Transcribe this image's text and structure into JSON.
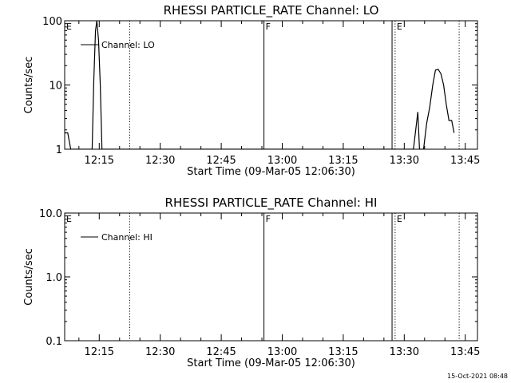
{
  "footer_timestamp": "15-Oct-2021 08:48",
  "chart_data": [
    {
      "type": "line",
      "title": "RHESSI PARTICLE_RATE Channel: LO",
      "xlabel": "Start Time (09-Mar-05 12:06:30)",
      "ylabel": "Counts/sec",
      "yscale": "log",
      "ylim": [
        1,
        100
      ],
      "y_ticks": [
        {
          "value": 1,
          "label": "1"
        },
        {
          "value": 10,
          "label": "10"
        },
        {
          "value": 100,
          "label": "100"
        }
      ],
      "xlim": [
        "12:06:30",
        "13:48:00"
      ],
      "x_ticks": [
        "12:15",
        "12:30",
        "12:45",
        "13:00",
        "13:15",
        "13:30",
        "13:45"
      ],
      "legend": {
        "position": "top-left",
        "entries": [
          "Channel: LO"
        ]
      },
      "series": [
        {
          "name": "Channel: LO",
          "color": "#000000",
          "points": [
            {
              "t": "12:06:30",
              "y": 1.8
            },
            {
              "t": "12:07:15",
              "y": 1.8
            },
            {
              "t": "12:08:00",
              "y": 1.0
            },
            {
              "t": "12:13:15",
              "y": 1.0
            },
            {
              "t": "12:13:40",
              "y": 12
            },
            {
              "t": "12:14:05",
              "y": 70
            },
            {
              "t": "12:14:25",
              "y": 100
            },
            {
              "t": "12:14:50",
              "y": 50
            },
            {
              "t": "12:15:15",
              "y": 10
            },
            {
              "t": "12:15:40",
              "y": 1.0
            },
            {
              "t": "13:32:15",
              "y": 1.0
            },
            {
              "t": "13:33:00",
              "y": 2.5
            },
            {
              "t": "13:33:20",
              "y": 3.8
            },
            {
              "t": "13:33:45",
              "y": 1.0
            },
            {
              "t": "13:34:45",
              "y": 1.0
            },
            {
              "t": "13:35:30",
              "y": 2.5
            },
            {
              "t": "13:36:15",
              "y": 4.5
            },
            {
              "t": "13:37:00",
              "y": 10
            },
            {
              "t": "13:37:40",
              "y": 17
            },
            {
              "t": "13:38:20",
              "y": 17.5
            },
            {
              "t": "13:39:00",
              "y": 15
            },
            {
              "t": "13:39:40",
              "y": 10
            },
            {
              "t": "13:40:20",
              "y": 5
            },
            {
              "t": "13:41:00",
              "y": 2.8
            },
            {
              "t": "13:41:40",
              "y": 2.8
            },
            {
              "t": "13:42:15",
              "y": 1.8
            }
          ]
        }
      ],
      "markers": [
        {
          "label": "E",
          "time": "12:06:30",
          "style": "none"
        },
        {
          "label": "",
          "time": "12:22:30",
          "style": "dotted"
        },
        {
          "label": "F",
          "time": "12:55:30",
          "style": "solid"
        },
        {
          "label": "",
          "time": "13:27:00",
          "style": "solid"
        },
        {
          "label": "E",
          "time": "13:27:45",
          "style": "dotted"
        },
        {
          "label": "",
          "time": "13:43:30",
          "style": "dotted"
        }
      ]
    },
    {
      "type": "line",
      "title": "RHESSI PARTICLE_RATE Channel: HI",
      "xlabel": "Start Time (09-Mar-05 12:06:30)",
      "ylabel": "Counts/sec",
      "yscale": "log",
      "ylim": [
        0.1,
        10
      ],
      "y_ticks": [
        {
          "value": 0.1,
          "label": "0.1"
        },
        {
          "value": 1,
          "label": "1.0"
        },
        {
          "value": 10,
          "label": "10.0"
        }
      ],
      "xlim": [
        "12:06:30",
        "13:48:00"
      ],
      "x_ticks": [
        "12:15",
        "12:30",
        "12:45",
        "13:00",
        "13:15",
        "13:30",
        "13:45"
      ],
      "legend": {
        "position": "top-left",
        "entries": [
          "Channel: HI"
        ]
      },
      "series": [
        {
          "name": "Channel: HI",
          "color": "#000000",
          "points": []
        }
      ],
      "markers": [
        {
          "label": "E",
          "time": "12:06:30",
          "style": "none"
        },
        {
          "label": "",
          "time": "12:22:30",
          "style": "dotted"
        },
        {
          "label": "F",
          "time": "12:55:30",
          "style": "solid"
        },
        {
          "label": "",
          "time": "13:27:00",
          "style": "solid"
        },
        {
          "label": "E",
          "time": "13:27:45",
          "style": "dotted"
        },
        {
          "label": "",
          "time": "13:43:30",
          "style": "dotted"
        }
      ]
    }
  ]
}
